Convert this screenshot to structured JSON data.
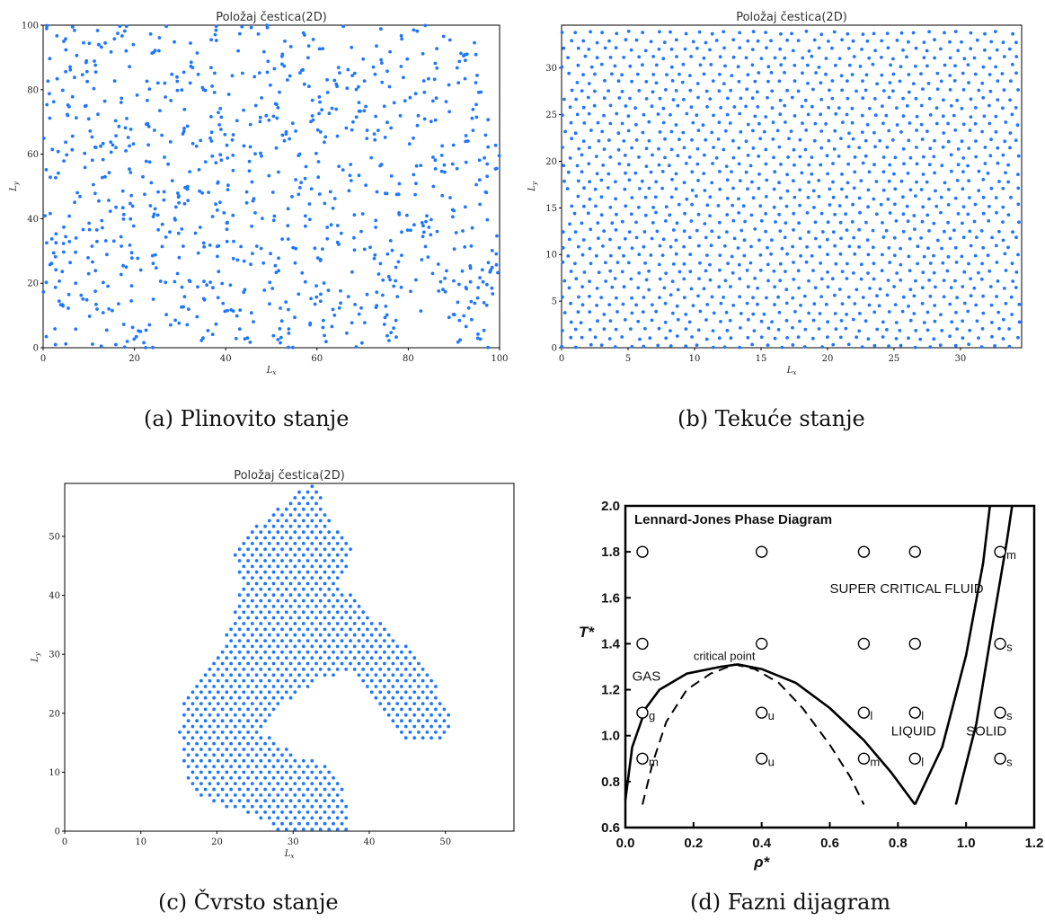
{
  "chart_data": [
    {
      "type": "scatter",
      "id": "gas",
      "title": "Položaj čestica(2D)",
      "xlabel": "Lx",
      "ylabel": "Ly",
      "xlim": [
        0,
        100
      ],
      "ylim": [
        0,
        100
      ],
      "xticks": [
        0,
        20,
        40,
        60,
        80,
        100
      ],
      "yticks": [
        0,
        20,
        40,
        60,
        80,
        100
      ],
      "color": "#1f77ff",
      "distribution": "random",
      "n_points": 900,
      "caption": "(a)  Plinovito stanje"
    },
    {
      "type": "scatter",
      "id": "liquid",
      "title": "Položaj čestica(2D)",
      "xlabel": "Lx",
      "ylabel": "Ly",
      "xlim": [
        0,
        34.6
      ],
      "ylim": [
        0,
        34.6
      ],
      "xticks": [
        0,
        5,
        10,
        15,
        20,
        25,
        30
      ],
      "yticks": [
        0,
        5,
        10,
        15,
        20,
        25,
        30
      ],
      "color": "#1f77ff",
      "distribution": "dense-uniform",
      "caption": "(b)  Tekuće stanje"
    },
    {
      "type": "scatter",
      "id": "solid",
      "title": "Položaj čestica(2D)",
      "xlabel": "Lx",
      "ylabel": "Ly",
      "xlim": [
        0,
        59
      ],
      "ylim": [
        0,
        59
      ],
      "xticks": [
        0,
        10,
        20,
        30,
        40,
        50
      ],
      "yticks": [
        0,
        10,
        20,
        30,
        40,
        50
      ],
      "color": "#1f77ff",
      "distribution": "hexagonal-cluster",
      "cluster_outline": [
        [
          15,
          17
        ],
        [
          16,
          8
        ],
        [
          19,
          5
        ],
        [
          26,
          2
        ],
        [
          28,
          0
        ],
        [
          37,
          0
        ],
        [
          37,
          6
        ],
        [
          35,
          11
        ],
        [
          30,
          13
        ],
        [
          26,
          17
        ],
        [
          29,
          22
        ],
        [
          34,
          26
        ],
        [
          38,
          27
        ],
        [
          41,
          22
        ],
        [
          45,
          15
        ],
        [
          49,
          15
        ],
        [
          51,
          18
        ],
        [
          49,
          24
        ],
        [
          46,
          30
        ],
        [
          40,
          37
        ],
        [
          36,
          42
        ],
        [
          38,
          48
        ],
        [
          35,
          52
        ],
        [
          33,
          59
        ],
        [
          31,
          58
        ],
        [
          26,
          53
        ],
        [
          22,
          47
        ],
        [
          23,
          42
        ],
        [
          22,
          35
        ],
        [
          19,
          28
        ],
        [
          16,
          24
        ]
      ],
      "caption": "(c)  Čvrsto stanje"
    },
    {
      "type": "line",
      "id": "lj",
      "title": "Lennard-Jones Phase Diagram",
      "xlabel": "ρ*",
      "ylabel": "T*",
      "xlim": [
        0,
        1.2
      ],
      "ylim": [
        0.6,
        2.0
      ],
      "xticks": [
        "0.0",
        "0.2",
        "0.4",
        "0.6",
        "0.8",
        "1.0",
        "1.2"
      ],
      "yticks": [
        "0.6",
        "0.8",
        "1.0",
        "1.2",
        "1.4",
        "1.6",
        "1.8",
        "2.0"
      ],
      "regions": [
        {
          "label": "SUPER CRITICAL FLUID",
          "x": 0.6,
          "y": 1.62
        },
        {
          "label": "GAS",
          "x": 0.02,
          "y": 1.24
        },
        {
          "label": "LIQUID",
          "x": 0.78,
          "y": 1.0
        },
        {
          "label": "SOLID",
          "x": 1.0,
          "y": 1.0
        },
        {
          "label": "critical point",
          "x": 0.2,
          "y": 1.33
        }
      ],
      "series": [
        {
          "style": "solid",
          "values": [
            [
              0,
              0.72
            ],
            [
              0.02,
              0.95
            ],
            [
              0.06,
              1.12
            ],
            [
              0.1,
              1.2
            ],
            [
              0.18,
              1.27
            ],
            [
              0.28,
              1.3
            ],
            [
              0.33,
              1.31
            ],
            [
              0.4,
              1.29
            ],
            [
              0.5,
              1.23
            ],
            [
              0.6,
              1.12
            ],
            [
              0.7,
              0.98
            ],
            [
              0.78,
              0.84
            ],
            [
              0.85,
              0.7
            ]
          ]
        },
        {
          "style": "solid",
          "values": [
            [
              0.85,
              0.7
            ],
            [
              0.93,
              0.95
            ],
            [
              1.0,
              1.35
            ],
            [
              1.05,
              1.75
            ],
            [
              1.07,
              2.0
            ]
          ]
        },
        {
          "style": "solid",
          "values": [
            [
              0.97,
              0.7
            ],
            [
              1.03,
              1.05
            ],
            [
              1.08,
              1.5
            ],
            [
              1.12,
              1.85
            ],
            [
              1.135,
              2.0
            ]
          ]
        },
        {
          "style": "dashed",
          "values": [
            [
              0.05,
              0.7
            ],
            [
              0.08,
              0.88
            ],
            [
              0.12,
              1.06
            ],
            [
              0.18,
              1.2
            ],
            [
              0.25,
              1.27
            ],
            [
              0.32,
              1.31
            ],
            [
              0.38,
              1.29
            ],
            [
              0.45,
              1.23
            ],
            [
              0.52,
              1.12
            ],
            [
              0.6,
              0.96
            ],
            [
              0.66,
              0.82
            ],
            [
              0.7,
              0.7
            ]
          ]
        }
      ],
      "markers": [
        {
          "x": 0.05,
          "y": 1.8,
          "label": ""
        },
        {
          "x": 0.4,
          "y": 1.8,
          "label": ""
        },
        {
          "x": 0.7,
          "y": 1.8,
          "label": ""
        },
        {
          "x": 0.85,
          "y": 1.8,
          "label": ""
        },
        {
          "x": 1.1,
          "y": 1.8,
          "label": "m"
        },
        {
          "x": 0.05,
          "y": 1.4,
          "label": ""
        },
        {
          "x": 0.4,
          "y": 1.4,
          "label": ""
        },
        {
          "x": 0.7,
          "y": 1.4,
          "label": ""
        },
        {
          "x": 0.85,
          "y": 1.4,
          "label": ""
        },
        {
          "x": 1.1,
          "y": 1.4,
          "label": "s"
        },
        {
          "x": 0.05,
          "y": 1.1,
          "label": "g"
        },
        {
          "x": 0.4,
          "y": 1.1,
          "label": "u"
        },
        {
          "x": 0.7,
          "y": 1.1,
          "label": "l"
        },
        {
          "x": 0.85,
          "y": 1.1,
          "label": "l"
        },
        {
          "x": 1.1,
          "y": 1.1,
          "label": "s"
        },
        {
          "x": 0.05,
          "y": 0.9,
          "label": "m"
        },
        {
          "x": 0.4,
          "y": 0.9,
          "label": "u"
        },
        {
          "x": 0.7,
          "y": 0.9,
          "label": "m"
        },
        {
          "x": 0.85,
          "y": 0.9,
          "label": "l"
        },
        {
          "x": 1.1,
          "y": 0.9,
          "label": "s"
        }
      ],
      "caption": "(d)  Fazni dijagram"
    }
  ]
}
